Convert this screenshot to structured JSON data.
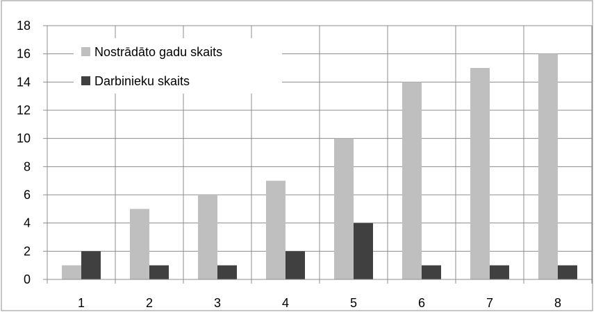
{
  "chart_data": {
    "type": "bar",
    "title": "",
    "xlabel": "",
    "ylabel": "",
    "categories": [
      "1",
      "2",
      "3",
      "4",
      "5",
      "6",
      "7",
      "8"
    ],
    "series": [
      {
        "name": "Nostrādāto gadu skaits",
        "color": "#bfbfbf",
        "values": [
          1,
          5,
          6,
          7,
          10,
          14,
          15,
          16
        ]
      },
      {
        "name": "Darbinieku skaits",
        "color": "#404040",
        "values": [
          2,
          1,
          1,
          2,
          4,
          1,
          1,
          1
        ]
      }
    ],
    "ylim": [
      0,
      18
    ],
    "yticks": [
      "0",
      "2",
      "4",
      "6",
      "8",
      "10",
      "12",
      "14",
      "16",
      "18"
    ],
    "grid": "both",
    "legend_position": "top-left"
  }
}
